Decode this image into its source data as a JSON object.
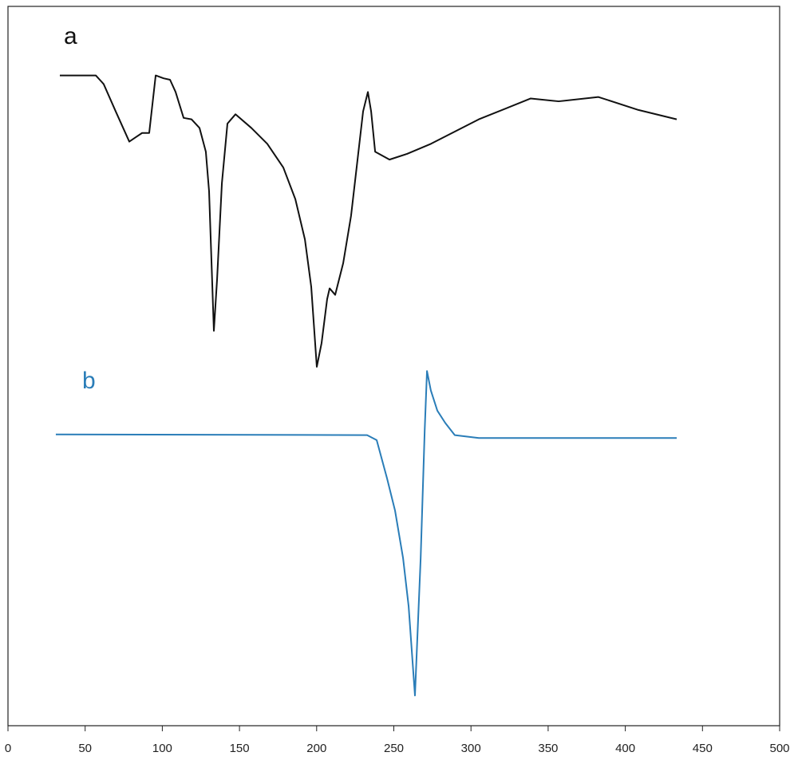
{
  "chart_data": {
    "type": "line",
    "x_grid": false,
    "y_grid": false,
    "xlim": [
      0,
      500
    ],
    "xticks": [
      0,
      50,
      100,
      150,
      200,
      250,
      300,
      350,
      400,
      450,
      500
    ],
    "ylim": [
      0,
      100
    ],
    "series": [
      {
        "name": "a",
        "color": "#111111",
        "x": [
          33.6,
          56.9,
          62,
          69.8,
          78.6,
          82.7,
          86.9,
          91.5,
          95.7,
          100.8,
          105,
          108.6,
          113.8,
          118.9,
          124.1,
          128.2,
          130.3,
          131.9,
          133.4,
          135.5,
          138.6,
          142.2,
          147.4,
          157.7,
          168,
          178.4,
          186.2,
          192.4,
          196.5,
          200.1,
          203.2,
          206.8,
          208.4,
          212,
          217.2,
          222.3,
          226.5,
          230.1,
          233.2,
          235.3,
          237.9,
          247.2,
          258.6,
          274.1,
          305.1,
          338.7,
          356.8,
          382.6,
          408.5,
          433.3
        ],
        "values": [
          90.4,
          90.4,
          89.2,
          85.4,
          81.2,
          81.8,
          82.4,
          82.4,
          90.4,
          90.0,
          89.8,
          88.1,
          84.5,
          84.3,
          83.1,
          79.8,
          74.3,
          64.3,
          54.9,
          62.1,
          75.4,
          83.7,
          85.0,
          83.1,
          80.9,
          77.6,
          73.2,
          67.6,
          61.0,
          49.9,
          53.2,
          59.3,
          60.8,
          59.9,
          64.3,
          70.9,
          78.7,
          85.4,
          88.1,
          85.4,
          79.8,
          78.7,
          79.5,
          80.9,
          84.3,
          87.2,
          86.8,
          87.4,
          85.6,
          84.3
        ]
      },
      {
        "name": "b",
        "color": "#2a7db8",
        "x": [
          31,
          232.7,
          238.9,
          245.6,
          250.8,
          256,
          259.6,
          263.7,
          267.4,
          270,
          271.5,
          274,
          278.2,
          283.3,
          289.5,
          305.1,
          433.3
        ],
        "values": [
          40.5,
          40.4,
          39.7,
          34.4,
          29.9,
          23.3,
          16.6,
          4.2,
          23.3,
          41.0,
          49.3,
          46.6,
          43.8,
          42.1,
          40.4,
          40.0,
          40.0
        ]
      }
    ]
  }
}
